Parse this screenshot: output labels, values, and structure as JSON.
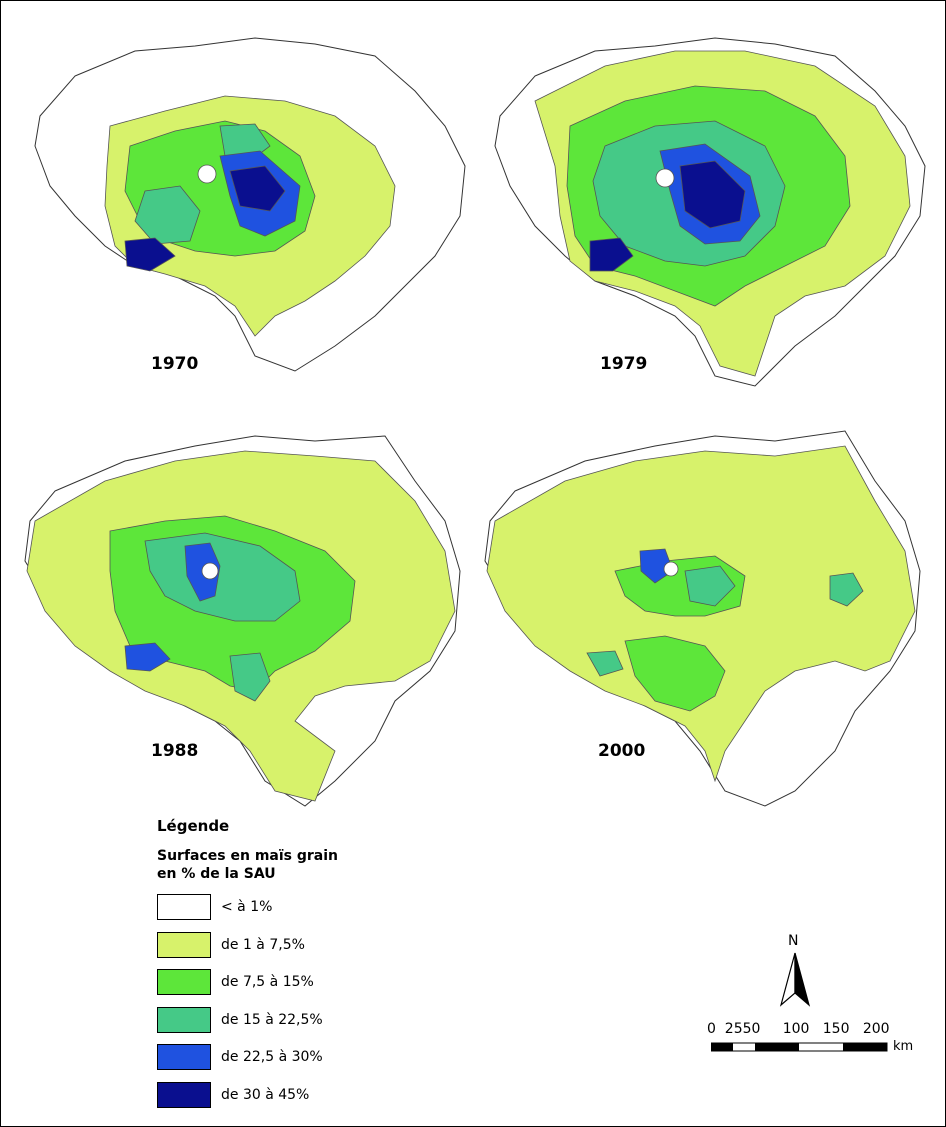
{
  "maps": [
    {
      "year": "1970"
    },
    {
      "year": "1979"
    },
    {
      "year": "1988"
    },
    {
      "year": "2000"
    }
  ],
  "legend": {
    "title": "Légende",
    "subtitle_line1": "Surfaces en maïs grain",
    "subtitle_line2": "en % de la SAU",
    "classes": [
      {
        "label": "< à 1%",
        "color": "#ffffff"
      },
      {
        "label": "de 1 à 7,5%",
        "color": "#d7f26b"
      },
      {
        "label": "de 7,5 à 15%",
        "color": "#5de63a"
      },
      {
        "label": "de 15 à 22,5%",
        "color": "#45c987"
      },
      {
        "label": "de 22,5 à 30%",
        "color": "#1f52e0"
      },
      {
        "label": "de 30 à 45%",
        "color": "#0a0f8f"
      }
    ]
  },
  "north_arrow": {
    "letter": "N"
  },
  "scale_bar": {
    "ticks": "0  2550     100   150   200",
    "unit": "km"
  }
}
